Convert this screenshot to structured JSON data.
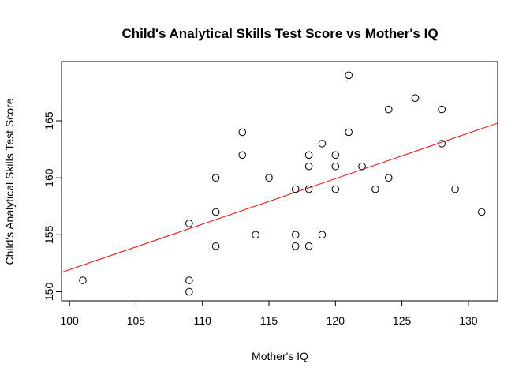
{
  "chart_data": {
    "type": "scatter",
    "title": "Child's Analytical Skills Test Score vs Mother's IQ",
    "xlabel": "Mother's IQ",
    "ylabel": "Child's Analytical Skills Test Score",
    "xlim": [
      99.4,
      132.2
    ],
    "ylim": [
      149.2,
      170.2
    ],
    "xticks": [
      100,
      105,
      110,
      115,
      120,
      125,
      130
    ],
    "yticks": [
      150,
      155,
      160,
      165
    ],
    "grid": false,
    "series": [
      {
        "marker": "open-circle",
        "color": "#000000",
        "points": [
          {
            "x": 101,
            "y": 151
          },
          {
            "x": 109,
            "y": 150
          },
          {
            "x": 109,
            "y": 151
          },
          {
            "x": 109,
            "y": 156
          },
          {
            "x": 111,
            "y": 154
          },
          {
            "x": 111,
            "y": 157
          },
          {
            "x": 111,
            "y": 160
          },
          {
            "x": 113,
            "y": 162
          },
          {
            "x": 113,
            "y": 164
          },
          {
            "x": 114,
            "y": 155
          },
          {
            "x": 115,
            "y": 160
          },
          {
            "x": 117,
            "y": 154
          },
          {
            "x": 117,
            "y": 155
          },
          {
            "x": 117,
            "y": 159
          },
          {
            "x": 118,
            "y": 154
          },
          {
            "x": 118,
            "y": 159
          },
          {
            "x": 118,
            "y": 161
          },
          {
            "x": 118,
            "y": 162
          },
          {
            "x": 119,
            "y": 155
          },
          {
            "x": 119,
            "y": 163
          },
          {
            "x": 120,
            "y": 159
          },
          {
            "x": 120,
            "y": 161
          },
          {
            "x": 120,
            "y": 162
          },
          {
            "x": 121,
            "y": 164
          },
          {
            "x": 121,
            "y": 169
          },
          {
            "x": 122,
            "y": 161
          },
          {
            "x": 123,
            "y": 159
          },
          {
            "x": 124,
            "y": 160
          },
          {
            "x": 124,
            "y": 166
          },
          {
            "x": 126,
            "y": 167
          },
          {
            "x": 128,
            "y": 163
          },
          {
            "x": 128,
            "y": 166
          },
          {
            "x": 129,
            "y": 159
          },
          {
            "x": 131,
            "y": 157
          }
        ]
      }
    ],
    "fit_line": {
      "color": "#ff0000",
      "x": [
        99.4,
        132.2
      ],
      "y": [
        151.7,
        164.8
      ]
    }
  }
}
